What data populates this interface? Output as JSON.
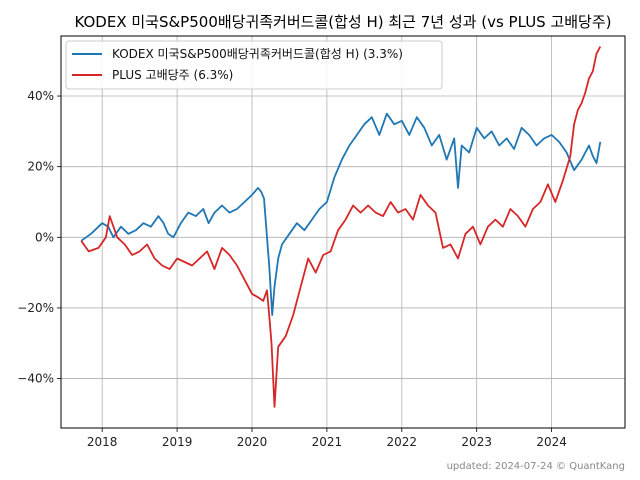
{
  "chart_data": {
    "type": "line",
    "title": "KODEX 미국S&P500배당귀족커버드콜(합성 H) 최근 7년 성과 (vs PLUS 고배당주)",
    "xlabel": "",
    "ylabel": "",
    "xlim": [
      2017.45,
      2024.98
    ],
    "ylim": [
      -54,
      57
    ],
    "x_ticks": [
      {
        "value": 2018,
        "label": "2018"
      },
      {
        "value": 2019,
        "label": "2019"
      },
      {
        "value": 2020,
        "label": "2020"
      },
      {
        "value": 2021,
        "label": "2021"
      },
      {
        "value": 2022,
        "label": "2022"
      },
      {
        "value": 2023,
        "label": "2023"
      },
      {
        "value": 2024,
        "label": "2024"
      }
    ],
    "y_ticks": [
      {
        "value": -40,
        "label": "−40%"
      },
      {
        "value": -20,
        "label": "−20%"
      },
      {
        "value": 0,
        "label": "0%"
      },
      {
        "value": 20,
        "label": "20%"
      },
      {
        "value": 40,
        "label": "40%"
      }
    ],
    "grid": true,
    "legend_position": "top-left",
    "series": [
      {
        "name": "KODEX 미국S&P500배당귀족커버드콜(합성 H) (3.3%)",
        "color": "#1f77b4",
        "x": [
          2017.72,
          2017.85,
          2018.0,
          2018.08,
          2018.15,
          2018.25,
          2018.35,
          2018.45,
          2018.55,
          2018.65,
          2018.75,
          2018.82,
          2018.88,
          2018.95,
          2019.05,
          2019.15,
          2019.25,
          2019.35,
          2019.42,
          2019.5,
          2019.6,
          2019.7,
          2019.8,
          2019.9,
          2020.0,
          2020.08,
          2020.12,
          2020.16,
          2020.2,
          2020.23,
          2020.27,
          2020.3,
          2020.35,
          2020.4,
          2020.5,
          2020.6,
          2020.7,
          2020.8,
          2020.9,
          2021.0,
          2021.1,
          2021.2,
          2021.3,
          2021.4,
          2021.5,
          2021.6,
          2021.7,
          2021.8,
          2021.9,
          2022.0,
          2022.1,
          2022.2,
          2022.3,
          2022.4,
          2022.5,
          2022.6,
          2022.7,
          2022.75,
          2022.8,
          2022.9,
          2023.0,
          2023.1,
          2023.2,
          2023.3,
          2023.4,
          2023.5,
          2023.6,
          2023.7,
          2023.8,
          2023.9,
          2024.0,
          2024.1,
          2024.2,
          2024.3,
          2024.4,
          2024.5,
          2024.55,
          2024.6,
          2024.65
        ],
        "y": [
          -1,
          1,
          4,
          3,
          0,
          3,
          1,
          2,
          4,
          3,
          6,
          4,
          1,
          0,
          4,
          7,
          6,
          8,
          4,
          7,
          9,
          7,
          8,
          10,
          12,
          14,
          13,
          11,
          0,
          -8,
          -22,
          -14,
          -6,
          -2,
          1,
          4,
          2,
          5,
          8,
          10,
          17,
          22,
          26,
          29,
          32,
          34,
          29,
          35,
          32,
          33,
          29,
          34,
          31,
          26,
          29,
          22,
          28,
          14,
          26,
          24,
          31,
          28,
          30,
          26,
          28,
          25,
          31,
          29,
          26,
          28,
          29,
          27,
          24,
          19,
          22,
          26,
          23,
          21,
          27
        ]
      },
      {
        "name": "PLUS 고배당주 (6.3%)",
        "color": "#d62728",
        "x": [
          2017.72,
          2017.82,
          2017.95,
          2018.05,
          2018.1,
          2018.2,
          2018.3,
          2018.4,
          2018.5,
          2018.6,
          2018.7,
          2018.8,
          2018.9,
          2019.0,
          2019.1,
          2019.2,
          2019.3,
          2019.4,
          2019.5,
          2019.6,
          2019.7,
          2019.8,
          2019.9,
          2020.0,
          2020.08,
          2020.15,
          2020.2,
          2020.23,
          2020.26,
          2020.3,
          2020.35,
          2020.45,
          2020.55,
          2020.65,
          2020.75,
          2020.85,
          2020.95,
          2021.05,
          2021.15,
          2021.25,
          2021.35,
          2021.45,
          2021.55,
          2021.65,
          2021.75,
          2021.85,
          2021.95,
          2022.05,
          2022.15,
          2022.25,
          2022.35,
          2022.45,
          2022.55,
          2022.65,
          2022.75,
          2022.85,
          2022.95,
          2023.05,
          2023.15,
          2023.25,
          2023.35,
          2023.45,
          2023.55,
          2023.65,
          2023.75,
          2023.85,
          2023.95,
          2024.05,
          2024.15,
          2024.25,
          2024.3,
          2024.35,
          2024.4,
          2024.45,
          2024.5,
          2024.55,
          2024.6,
          2024.65
        ],
        "y": [
          -1,
          -4,
          -3,
          0,
          6,
          0,
          -2,
          -5,
          -4,
          -2,
          -6,
          -8,
          -9,
          -6,
          -7,
          -8,
          -6,
          -4,
          -9,
          -3,
          -5,
          -8,
          -12,
          -16,
          -17,
          -18,
          -15,
          -22,
          -30,
          -48,
          -31,
          -28,
          -22,
          -14,
          -6,
          -10,
          -5,
          -4,
          2,
          5,
          9,
          7,
          9,
          7,
          6,
          10,
          7,
          8,
          5,
          12,
          9,
          7,
          -3,
          -2,
          -6,
          1,
          3,
          -2,
          3,
          5,
          3,
          8,
          6,
          3,
          8,
          10,
          15,
          10,
          16,
          23,
          32,
          36,
          38,
          41,
          45,
          47,
          52,
          54
        ]
      }
    ]
  },
  "credit": "updated: 2024-07-24 © QuantKang"
}
